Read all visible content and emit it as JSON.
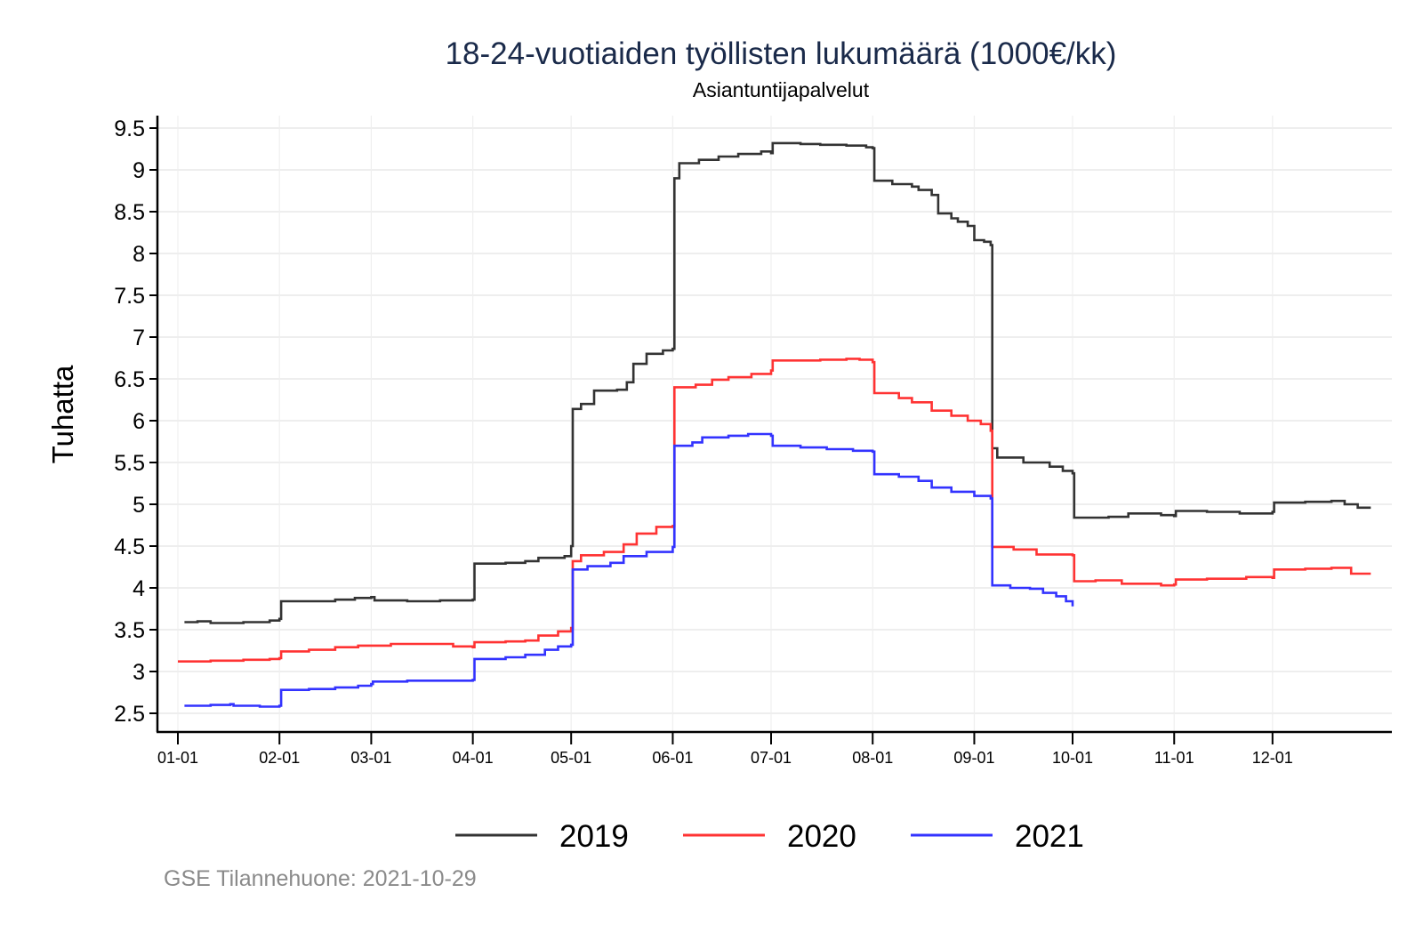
{
  "chart_data": {
    "type": "line",
    "title": "18-24-vuotiaiden työllisten lukumäärä (1000€/kk)",
    "subtitle": "Asiantuntijapalvelut",
    "xlabel": "",
    "ylabel": "Tuhatta",
    "ylim": [
      2.3,
      9.7
    ],
    "xlim_days": [
      -6,
      370
    ],
    "grid": true,
    "legend_position": "bottom",
    "yticks": [
      {
        "value": 2.5,
        "label": "2.5"
      },
      {
        "value": 3,
        "label": "3"
      },
      {
        "value": 3.5,
        "label": "3.5"
      },
      {
        "value": 4,
        "label": "4"
      },
      {
        "value": 4.5,
        "label": "4.5"
      },
      {
        "value": 5,
        "label": "5"
      },
      {
        "value": 5.5,
        "label": "5.5"
      },
      {
        "value": 6,
        "label": "6"
      },
      {
        "value": 6.5,
        "label": "6.5"
      },
      {
        "value": 7,
        "label": "7"
      },
      {
        "value": 7.5,
        "label": "7.5"
      },
      {
        "value": 8,
        "label": "8"
      },
      {
        "value": 8.5,
        "label": "8.5"
      },
      {
        "value": 9,
        "label": "9"
      },
      {
        "value": 9.5,
        "label": "9.5"
      }
    ],
    "xticks": [
      {
        "day": 0,
        "label": "01-01"
      },
      {
        "day": 31,
        "label": "02-01"
      },
      {
        "day": 59,
        "label": "03-01"
      },
      {
        "day": 90,
        "label": "04-01"
      },
      {
        "day": 120,
        "label": "05-01"
      },
      {
        "day": 151,
        "label": "06-01"
      },
      {
        "day": 181,
        "label": "07-01"
      },
      {
        "day": 212,
        "label": "08-01"
      },
      {
        "day": 243,
        "label": "09-01"
      },
      {
        "day": 273,
        "label": "10-01"
      },
      {
        "day": 304,
        "label": "11-01"
      },
      {
        "day": 334,
        "label": "12-01"
      }
    ],
    "series": [
      {
        "name": "2019",
        "color": "#333333",
        "points": [
          [
            2,
            3.59
          ],
          [
            6,
            3.6
          ],
          [
            10,
            3.58
          ],
          [
            20,
            3.59
          ],
          [
            28,
            3.61
          ],
          [
            31,
            3.63
          ],
          [
            31.5,
            3.84
          ],
          [
            40,
            3.84
          ],
          [
            48,
            3.86
          ],
          [
            54,
            3.88
          ],
          [
            59,
            3.89
          ],
          [
            60,
            3.85
          ],
          [
            70,
            3.84
          ],
          [
            80,
            3.85
          ],
          [
            90,
            3.86
          ],
          [
            90.5,
            4.29
          ],
          [
            100,
            4.3
          ],
          [
            106,
            4.32
          ],
          [
            110,
            4.36
          ],
          [
            118,
            4.38
          ],
          [
            120,
            4.5
          ],
          [
            120.5,
            6.14
          ],
          [
            123,
            6.2
          ],
          [
            127,
            6.36
          ],
          [
            134,
            6.37
          ],
          [
            137,
            6.46
          ],
          [
            139,
            6.68
          ],
          [
            143,
            6.8
          ],
          [
            148,
            6.84
          ],
          [
            151,
            6.86
          ],
          [
            151.5,
            8.9
          ],
          [
            153,
            9.08
          ],
          [
            159,
            9.12
          ],
          [
            165,
            9.16
          ],
          [
            171,
            9.19
          ],
          [
            178,
            9.22
          ],
          [
            181,
            9.2
          ],
          [
            181.5,
            9.32
          ],
          [
            190,
            9.31
          ],
          [
            196,
            9.3
          ],
          [
            204,
            9.29
          ],
          [
            210,
            9.27
          ],
          [
            212,
            9.26
          ],
          [
            212.5,
            8.87
          ],
          [
            218,
            8.83
          ],
          [
            224,
            8.8
          ],
          [
            226,
            8.76
          ],
          [
            230,
            8.7
          ],
          [
            232,
            8.48
          ],
          [
            236,
            8.42
          ],
          [
            238,
            8.38
          ],
          [
            241,
            8.33
          ],
          [
            243,
            8.16
          ],
          [
            246,
            8.14
          ],
          [
            248,
            8.1
          ],
          [
            248.5,
            5.67
          ],
          [
            250,
            5.56
          ],
          [
            258,
            5.5
          ],
          [
            266,
            5.45
          ],
          [
            270,
            5.4
          ],
          [
            273,
            5.37
          ],
          [
            273.5,
            4.84
          ],
          [
            284,
            4.85
          ],
          [
            290,
            4.89
          ],
          [
            300,
            4.87
          ],
          [
            304,
            4.86
          ],
          [
            304.5,
            4.92
          ],
          [
            314,
            4.91
          ],
          [
            324,
            4.89
          ],
          [
            334,
            4.91
          ],
          [
            334.5,
            5.02
          ],
          [
            344,
            5.03
          ],
          [
            352,
            5.04
          ],
          [
            356,
            5.0
          ],
          [
            360,
            4.96
          ],
          [
            364,
            4.96
          ]
        ]
      },
      {
        "name": "2020",
        "color": "#ff3333",
        "points": [
          [
            0,
            3.12
          ],
          [
            10,
            3.13
          ],
          [
            20,
            3.14
          ],
          [
            28,
            3.15
          ],
          [
            31,
            3.16
          ],
          [
            31.5,
            3.24
          ],
          [
            40,
            3.26
          ],
          [
            48,
            3.29
          ],
          [
            55,
            3.31
          ],
          [
            65,
            3.33
          ],
          [
            75,
            3.33
          ],
          [
            84,
            3.3
          ],
          [
            90,
            3.29
          ],
          [
            90.5,
            3.35
          ],
          [
            100,
            3.36
          ],
          [
            106,
            3.37
          ],
          [
            110,
            3.43
          ],
          [
            116,
            3.48
          ],
          [
            120,
            3.52
          ],
          [
            120.5,
            4.32
          ],
          [
            123,
            4.39
          ],
          [
            130,
            4.43
          ],
          [
            136,
            4.52
          ],
          [
            140,
            4.65
          ],
          [
            146,
            4.73
          ],
          [
            151,
            4.74
          ],
          [
            151.5,
            6.4
          ],
          [
            158,
            6.43
          ],
          [
            163,
            6.49
          ],
          [
            168,
            6.52
          ],
          [
            175,
            6.56
          ],
          [
            181,
            6.6
          ],
          [
            181.5,
            6.72
          ],
          [
            190,
            6.72
          ],
          [
            196,
            6.73
          ],
          [
            204,
            6.74
          ],
          [
            208,
            6.73
          ],
          [
            212,
            6.7
          ],
          [
            212.5,
            6.33
          ],
          [
            220,
            6.27
          ],
          [
            224,
            6.22
          ],
          [
            230,
            6.12
          ],
          [
            236,
            6.06
          ],
          [
            241,
            6.0
          ],
          [
            245,
            5.96
          ],
          [
            248,
            5.88
          ],
          [
            248.5,
            4.49
          ],
          [
            255,
            4.46
          ],
          [
            262,
            4.4
          ],
          [
            273,
            4.39
          ],
          [
            273.5,
            4.08
          ],
          [
            280,
            4.09
          ],
          [
            288,
            4.05
          ],
          [
            300,
            4.03
          ],
          [
            304,
            4.04
          ],
          [
            304.5,
            4.1
          ],
          [
            314,
            4.11
          ],
          [
            326,
            4.13
          ],
          [
            334,
            4.12
          ],
          [
            334.5,
            4.22
          ],
          [
            344,
            4.23
          ],
          [
            352,
            4.24
          ],
          [
            358,
            4.17
          ],
          [
            364,
            4.17
          ]
        ]
      },
      {
        "name": "2021",
        "color": "#3333ff",
        "points": [
          [
            2,
            2.59
          ],
          [
            10,
            2.6
          ],
          [
            16,
            2.61
          ],
          [
            17,
            2.59
          ],
          [
            25,
            2.58
          ],
          [
            31,
            2.59
          ],
          [
            31.5,
            2.78
          ],
          [
            40,
            2.79
          ],
          [
            48,
            2.81
          ],
          [
            55,
            2.83
          ],
          [
            59,
            2.85
          ],
          [
            59.5,
            2.88
          ],
          [
            70,
            2.89
          ],
          [
            80,
            2.89
          ],
          [
            90,
            2.9
          ],
          [
            90.5,
            3.15
          ],
          [
            100,
            3.17
          ],
          [
            106,
            3.2
          ],
          [
            112,
            3.26
          ],
          [
            116,
            3.3
          ],
          [
            120,
            3.32
          ],
          [
            120.5,
            4.22
          ],
          [
            125,
            4.26
          ],
          [
            132,
            4.3
          ],
          [
            136,
            4.38
          ],
          [
            143,
            4.43
          ],
          [
            151,
            4.49
          ],
          [
            151.5,
            5.7
          ],
          [
            157,
            5.74
          ],
          [
            160,
            5.8
          ],
          [
            168,
            5.82
          ],
          [
            174,
            5.84
          ],
          [
            180,
            5.84
          ],
          [
            181,
            5.82
          ],
          [
            181.5,
            5.7
          ],
          [
            190,
            5.68
          ],
          [
            198,
            5.66
          ],
          [
            206,
            5.64
          ],
          [
            212,
            5.63
          ],
          [
            212.5,
            5.36
          ],
          [
            220,
            5.33
          ],
          [
            226,
            5.28
          ],
          [
            230,
            5.2
          ],
          [
            236,
            5.15
          ],
          [
            243,
            5.1
          ],
          [
            248,
            5.07
          ],
          [
            248.5,
            4.03
          ],
          [
            254,
            4.0
          ],
          [
            260,
            3.99
          ],
          [
            264,
            3.94
          ],
          [
            268,
            3.9
          ],
          [
            271,
            3.84
          ],
          [
            273,
            3.78
          ]
        ]
      }
    ]
  },
  "footer": {
    "source_text": "GSE Tilannehuone: 2021-10-29"
  }
}
